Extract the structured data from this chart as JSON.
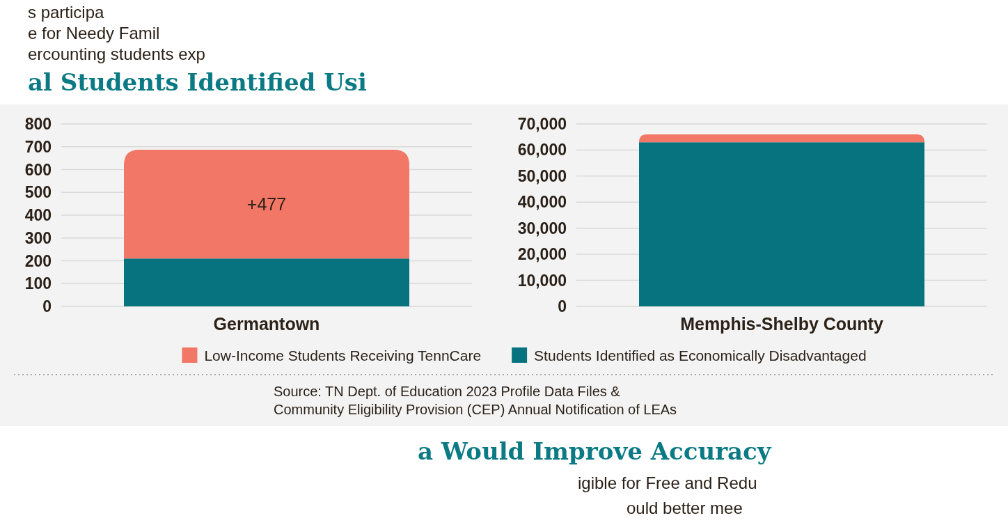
{
  "chart_data": [
    {
      "type": "bar",
      "stacked": true,
      "title": "al Students Identified Usi",
      "categories": [
        "Germantown"
      ],
      "series": [
        {
          "name": "Students Identified as Economically Disadvantaged",
          "color": "#06737e",
          "values": [
            210
          ]
        },
        {
          "name": "Low-Income Students Receiving TennCare",
          "color": "#f27766",
          "values": [
            477
          ],
          "value_labels": [
            "+477"
          ]
        }
      ],
      "ylim": [
        0,
        800
      ],
      "yticks": [
        0,
        100,
        200,
        300,
        400,
        500,
        600,
        700,
        800
      ],
      "grid": "y",
      "legend": "bottom",
      "annotations": [
        "s participa",
        "e for Needy Famil",
        "ercounting students exp",
        "Source: TN Dept. of Education 2023 Profile Data Files & Community Eligibility Provision (CEP) Annual Notification of LEAs",
        "a Would Improve Accuracy",
        "igible for Free and Redu",
        "ould better mee"
      ]
    },
    {
      "type": "bar",
      "stacked": true,
      "categories": [
        "Memphis-Shelby County"
      ],
      "series": [
        {
          "color": "#06737e",
          "values": [
            63000
          ]
        },
        {
          "color": "#f27766",
          "values": [
            3000
          ]
        }
      ],
      "ylim": [
        0,
        70000
      ],
      "yticks": [
        0,
        {
          "value": 10000,
          "label": "10,000"
        },
        {
          "value": 20000,
          "label": "20,000"
        },
        {
          "value": 30000,
          "label": "30,000"
        },
        {
          "value": 40000,
          "label": "40,000"
        },
        {
          "value": 50000,
          "label": "50,000"
        },
        {
          "value": 60000,
          "label": "60,000"
        },
        {
          "value": 70000,
          "label": "70,000"
        }
      ],
      "grid": "y"
    }
  ]
}
